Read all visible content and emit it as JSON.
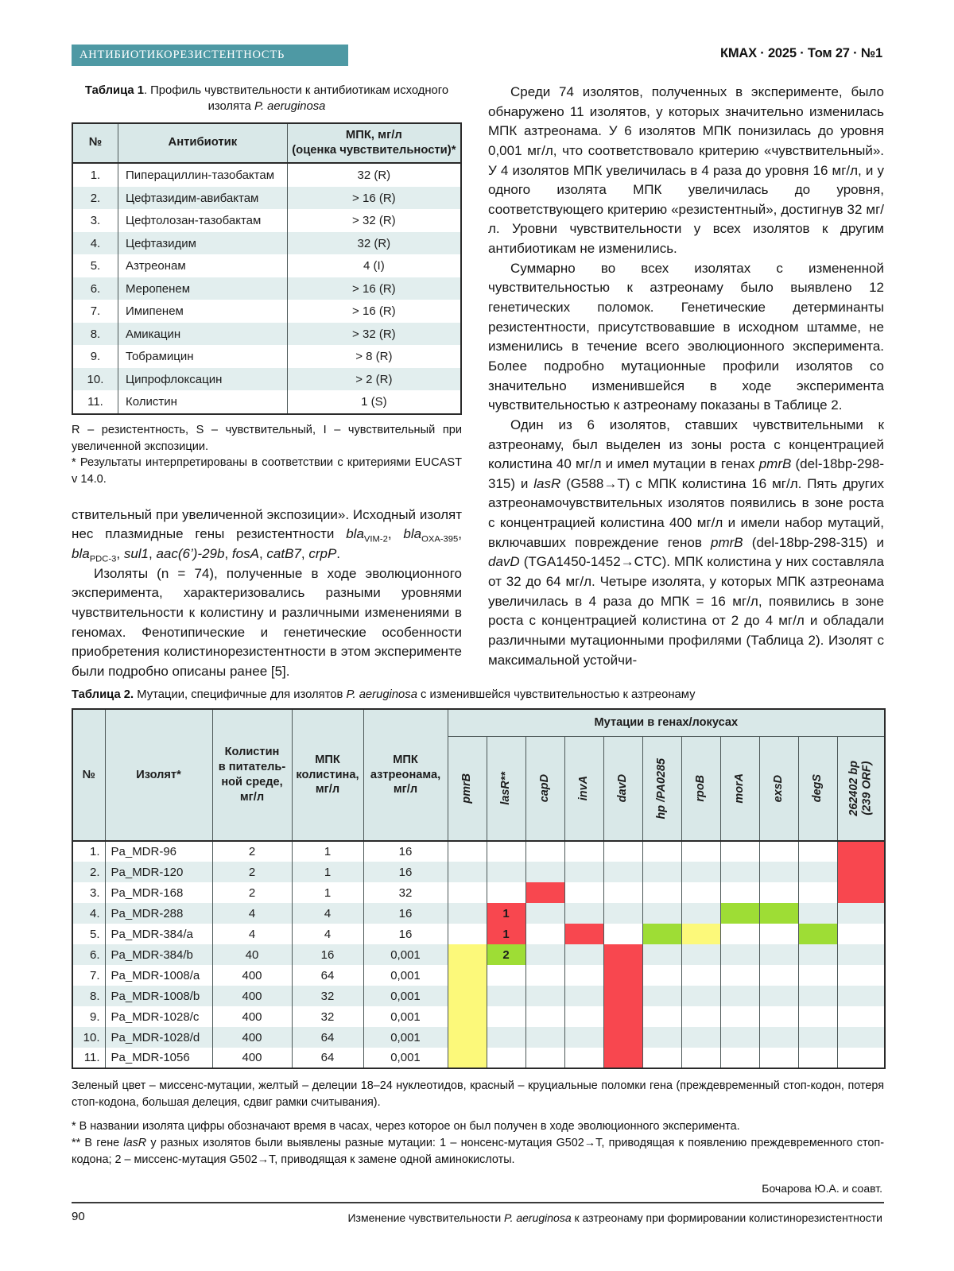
{
  "page": {
    "banner_label": "АНТИБИОТИКОРЕЗИСТЕНТНОСТЬ",
    "banner_color": "#4e99a4",
    "journal_ref": "КМАХ · 2025 · Том 27 · №1",
    "page_number": "90",
    "author_line": "Бочарова Ю.А. и соавт.",
    "running_title": [
      {
        "t": "Изменение чувствительности "
      },
      {
        "t": "P. aeruginosa",
        "s": "i"
      },
      {
        "t": " к азтреонаму при формировании колистинорезистентности"
      }
    ]
  },
  "table1": {
    "caption": [
      {
        "t": "Таблица 1",
        "s": "b"
      },
      {
        "t": ". Профиль чувствительности к антибиотикам исходного изолята "
      },
      {
        "t": "P. aeruginosa",
        "s": "i"
      }
    ],
    "header": {
      "num": "№",
      "antibiotic": "Антибиотик",
      "mic": "МПК, мг/л\n(оценка чувствительности)*"
    },
    "rows": [
      {
        "num": "1.",
        "antibiotic": "Пиперациллин-тазобактам",
        "mic": "32 (R)"
      },
      {
        "num": "2.",
        "antibiotic": "Цефтазидим-авибактам",
        "mic": "> 16 (R)"
      },
      {
        "num": "3.",
        "antibiotic": "Цефтолозан-тазобактам",
        "mic": "> 32 (R)"
      },
      {
        "num": "4.",
        "antibiotic": "Цефтазидим",
        "mic": "32 (R)"
      },
      {
        "num": "5.",
        "antibiotic": "Азтреонам",
        "mic": "4 (I)"
      },
      {
        "num": "6.",
        "antibiotic": "Меропенем",
        "mic": "> 16 (R)"
      },
      {
        "num": "7.",
        "antibiotic": "Имипенем",
        "mic": "> 16 (R)"
      },
      {
        "num": "8.",
        "antibiotic": "Амикацин",
        "mic": "> 32 (R)"
      },
      {
        "num": "9.",
        "antibiotic": "Тобрамицин",
        "mic": "> 8 (R)"
      },
      {
        "num": "10.",
        "antibiotic": "Ципрофлоксацин",
        "mic": "> 2 (R)"
      },
      {
        "num": "11.",
        "antibiotic": "Колистин",
        "mic": "1 (S)"
      }
    ],
    "footnote_rsi": "R – резистентность, S – чувствительный, I – чувствительный при увеличенной экспозиции.",
    "footnote_star": "* Результаты интерпретированы в соответствии с критериями EUCAST v 14.0."
  },
  "left_column": {
    "para1": [
      {
        "t": "ствительный при увеличенной экспозиции». Исходный изолят нес плазмидные гены резистентности "
      },
      {
        "t": "bla",
        "s": "i"
      },
      {
        "t": "VIM-2",
        "s": "sub"
      },
      {
        "t": ", "
      },
      {
        "t": "bla",
        "s": "i"
      },
      {
        "t": "OXA-395",
        "s": "sub"
      },
      {
        "t": ", "
      },
      {
        "t": "bla",
        "s": "i"
      },
      {
        "t": "PDC-3",
        "s": "sub"
      },
      {
        "t": ", "
      },
      {
        "t": "sul1",
        "s": "i"
      },
      {
        "t": ", "
      },
      {
        "t": "aac(6’)-29b",
        "s": "i"
      },
      {
        "t": ", "
      },
      {
        "t": "fosA",
        "s": "i"
      },
      {
        "t": ", "
      },
      {
        "t": "catB7",
        "s": "i"
      },
      {
        "t": ", "
      },
      {
        "t": "crpP",
        "s": "i"
      },
      {
        "t": "."
      }
    ],
    "para2": "Изоляты (n = 74), полученные в ходе эволюционного эксперимента, характеризовались разными уровнями чувствительности к колистину и различными изменениями в геномах. Фенотипические и генетические особенности приобретения колистинорезистентности в этом эксперименте были подробно описаны ранее [5]."
  },
  "right_column": {
    "para1": "Среди 74 изолятов, полученных в эксперименте, было обнаружено 11 изолятов, у которых значительно изменилась МПК азтреонама. У 6 изолятов МПК понизилась до уровня 0,001 мг/л, что соответствовало критерию «чувствительный». У 4 изолятов МПК увеличилась в 4 раза до уровня 16 мг/л, и у одного изолята МПК увеличилась до уровня, соответствующего критерию «резистентный», достигнув 32 мг/л. Уровни чувствительности у всех изолятов к другим антибиотикам не изменились.",
    "para2": "Суммарно во всех изолятах с измененной чувствительностью к азтреонаму было выявлено 12 генетических поломок. Генетические детерминанты резистентности, присутствовавшие в исходном штамме, не изменились в течение всего эволюционного эксперимента. Более подробно мутационные профили изолятов со значительно изменившейся в ходе эксперимента чувствительностью к азтреонаму показаны в Таблице 2.",
    "para3": [
      {
        "t": "Один из 6 изолятов, ставших чувствительными к азтреонаму, был выделен из зоны роста с концентрацией колистина 40 мг/л и имел мутации в генах "
      },
      {
        "t": "pmrB",
        "s": "i"
      },
      {
        "t": " (del-18bp-298-315) и "
      },
      {
        "t": "lasR",
        "s": "i"
      },
      {
        "t": " (G588→T) с МПК колистина 16 мг/л. Пять других азтреонамочувствительных изолятов появились в зоне роста с концентрацией колистина 400 мг/л и имели набор мутаций, включавших повреждение генов "
      },
      {
        "t": "pmrB",
        "s": "i"
      },
      {
        "t": " (del-18bp-298-315) и "
      },
      {
        "t": "davD",
        "s": "i"
      },
      {
        "t": " (TGA1450-1452→CTC). МПК колистина у них составляла от 32 до 64 мг/л. Четыре изолята, у которых МПК азтреонама увеличилась в 4 раза до МПК = 16 мг/л, появились в зоне роста с концентрацией колистина от 2 до 4 мг/л и обладали различными мутационными профилями (Таблица 2). Изолят с максимальной устойчи-"
      }
    ]
  },
  "table2": {
    "caption": [
      {
        "t": "Таблица 2.",
        "s": "b"
      },
      {
        "t": " Мутации, специфичные для изолятов "
      },
      {
        "t": "P. aeruginosa",
        "s": "i"
      },
      {
        "t": " с изменившейся чувствительностью к азтреонаму"
      }
    ],
    "header": {
      "num": "№",
      "isolate": "Изолят*",
      "colistin": "Колистин\nв питатель-\nной среде,\nмг/л",
      "mic_colistin": "МПК\nколистина,\nмг/л",
      "mic_aztreonam": "МПК\nазтреонама,\nмг/л",
      "mutations_span": "Мутации в генах/локусах",
      "genes": [
        "pmrB",
        "lasR**",
        "capD",
        "invA",
        "davD",
        "hp /PA0285",
        "rpoB",
        "morA",
        "exsD",
        "degS",
        "262402 bp\n(239 ORF)"
      ]
    },
    "colors": {
      "red": "#f8474f",
      "green": "#9edd35",
      "yellow": "#fcf97a"
    },
    "rows": [
      {
        "num": "1.",
        "isolate": "Pa_MDR-96",
        "colistin": "2",
        "mic_colistin": "1",
        "mic_aztreonam": "16",
        "mutations": [
          null,
          null,
          null,
          null,
          null,
          null,
          null,
          null,
          null,
          null,
          {
            "color": "red"
          }
        ]
      },
      {
        "num": "2.",
        "isolate": "Pa_MDR-120",
        "colistin": "2",
        "mic_colistin": "1",
        "mic_aztreonam": "16",
        "mutations": [
          null,
          null,
          null,
          null,
          null,
          null,
          null,
          null,
          null,
          null,
          {
            "color": "red"
          }
        ]
      },
      {
        "num": "3.",
        "isolate": "Pa_MDR-168",
        "colistin": "2",
        "mic_colistin": "1",
        "mic_aztreonam": "32",
        "mutations": [
          null,
          null,
          {
            "color": "red"
          },
          null,
          null,
          null,
          null,
          null,
          null,
          null,
          {
            "color": "red"
          }
        ]
      },
      {
        "num": "4.",
        "isolate": "Pa_MDR-288",
        "colistin": "4",
        "mic_colistin": "4",
        "mic_aztreonam": "16",
        "mutations": [
          null,
          {
            "color": "red",
            "label": "1"
          },
          null,
          null,
          null,
          null,
          null,
          {
            "color": "green"
          },
          {
            "color": "green"
          },
          null,
          null
        ]
      },
      {
        "num": "5.",
        "isolate": "Pa_MDR-384/a",
        "colistin": "4",
        "mic_colistin": "4",
        "mic_aztreonam": "16",
        "mutations": [
          null,
          {
            "color": "red",
            "label": "1"
          },
          null,
          {
            "color": "red"
          },
          null,
          {
            "color": "green"
          },
          {
            "color": "yellow"
          },
          null,
          null,
          {
            "color": "green"
          },
          null
        ]
      },
      {
        "num": "6.",
        "isolate": "Pa_MDR-384/b",
        "colistin": "40",
        "mic_colistin": "16",
        "mic_aztreonam": "0,001",
        "mutations": [
          {
            "color": "yellow"
          },
          {
            "color": "green",
            "label": "2"
          },
          null,
          null,
          {
            "color": "red"
          },
          null,
          null,
          null,
          null,
          null,
          null
        ]
      },
      {
        "num": "7.",
        "isolate": "Pa_MDR-1008/a",
        "colistin": "400",
        "mic_colistin": "64",
        "mic_aztreonam": "0,001",
        "mutations": [
          {
            "color": "yellow"
          },
          null,
          null,
          null,
          {
            "color": "red"
          },
          null,
          null,
          null,
          null,
          null,
          null
        ]
      },
      {
        "num": "8.",
        "isolate": "Pa_MDR-1008/b",
        "colistin": "400",
        "mic_colistin": "32",
        "mic_aztreonam": "0,001",
        "mutations": [
          {
            "color": "yellow"
          },
          null,
          null,
          null,
          {
            "color": "red"
          },
          null,
          null,
          null,
          null,
          null,
          null
        ]
      },
      {
        "num": "9.",
        "isolate": "Pa_MDR-1028/c",
        "colistin": "400",
        "mic_colistin": "32",
        "mic_aztreonam": "0,001",
        "mutations": [
          {
            "color": "yellow"
          },
          null,
          null,
          null,
          {
            "color": "red"
          },
          null,
          null,
          null,
          null,
          null,
          null
        ]
      },
      {
        "num": "10.",
        "isolate": "Pa_MDR-1028/d",
        "colistin": "400",
        "mic_colistin": "64",
        "mic_aztreonam": "0,001",
        "mutations": [
          {
            "color": "yellow"
          },
          null,
          null,
          null,
          {
            "color": "red"
          },
          null,
          null,
          null,
          null,
          null,
          null
        ]
      },
      {
        "num": "11.",
        "isolate": "Pa_MDR-1056",
        "colistin": "400",
        "mic_colistin": "64",
        "mic_aztreonam": "0,001",
        "mutations": [
          {
            "color": "yellow"
          },
          null,
          null,
          null,
          {
            "color": "red"
          },
          null,
          null,
          null,
          null,
          null,
          null
        ]
      }
    ],
    "footnote_legend": "Зеленый цвет – миссенс-мутации, желтый – делеции 18–24 нуклеотидов, красный – круциальные поломки гена (преждевременный стоп-кодон, потеря стоп-кодона, большая делеция, сдвиг рамки считывания).",
    "footnote_star": "* В названии изолята цифры обозначают время в часах, через которое он был получен в ходе эволюционного эксперимента.",
    "footnote_2star": [
      {
        "t": "** В гене "
      },
      {
        "t": "lasR",
        "s": "i"
      },
      {
        "t": " у разных изолятов были выявлены разные мутации: 1 – нонсенс-мутация G502→T, приводящая к появлению преждевременного стоп-кодона; 2 – миссенс-мутация G502→T, приводящая к замене одной аминокислоты."
      }
    ]
  }
}
